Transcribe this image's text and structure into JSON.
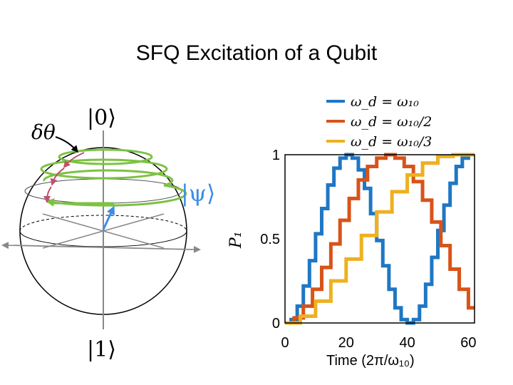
{
  "slide": {
    "title": "SFQ Excitation of a Qubit"
  },
  "bloch": {
    "ket0": "|0⟩",
    "ket1": "|1⟩",
    "psi": "|ψ⟩",
    "dtheta": "δθ",
    "colors": {
      "state": "#3a8ee6",
      "trajectory": "#7cc242",
      "kick": "#c0506e",
      "sphere": "#000000",
      "axis": "#888888"
    }
  },
  "chart_data": {
    "type": "line",
    "xlabel": "Time (2π/ω₁₀)",
    "ylabel": "P₁",
    "xlim": [
      0,
      62
    ],
    "ylim": [
      0,
      1
    ],
    "xticks": [
      "0",
      "20",
      "40",
      "60"
    ],
    "yticks": [
      "0",
      "0.5",
      "1"
    ],
    "legend_position": "top",
    "series": [
      {
        "name": "ω_d = ω₁₀",
        "color": "#1f77c4",
        "x": [
          0,
          2,
          4,
          6,
          8,
          10,
          12,
          14,
          16,
          18,
          20,
          22,
          24,
          26,
          28,
          30,
          32,
          34,
          36,
          38,
          40,
          42,
          44,
          46,
          48,
          50,
          52,
          54,
          56,
          58,
          60,
          62
        ],
        "y": [
          0,
          0.02,
          0.1,
          0.22,
          0.37,
          0.53,
          0.68,
          0.82,
          0.92,
          0.98,
          1,
          0.98,
          0.91,
          0.8,
          0.65,
          0.49,
          0.34,
          0.2,
          0.09,
          0.02,
          0,
          0.02,
          0.1,
          0.23,
          0.39,
          0.55,
          0.7,
          0.83,
          0.93,
          0.98,
          1,
          1
        ]
      },
      {
        "name": "ω_d = ω₁₀/2",
        "color": "#d95319",
        "x": [
          0,
          3,
          6,
          9,
          12,
          15,
          18,
          21,
          24,
          27,
          30,
          33,
          36,
          39,
          42,
          45,
          48,
          51,
          54,
          57,
          60,
          62
        ],
        "y": [
          0,
          0.03,
          0.1,
          0.2,
          0.33,
          0.47,
          0.61,
          0.74,
          0.85,
          0.93,
          0.98,
          1,
          0.98,
          0.93,
          0.84,
          0.73,
          0.6,
          0.46,
          0.32,
          0.2,
          0.09,
          0.09
        ]
      },
      {
        "name": "ω_d = ω₁₀/3",
        "color": "#edb120",
        "x": [
          0,
          5,
          10,
          15,
          20,
          25,
          30,
          35,
          40,
          45,
          50,
          55,
          60,
          62
        ],
        "y": [
          0,
          0.04,
          0.13,
          0.25,
          0.38,
          0.52,
          0.66,
          0.78,
          0.88,
          0.95,
          0.99,
          1,
          1,
          1
        ]
      }
    ]
  }
}
